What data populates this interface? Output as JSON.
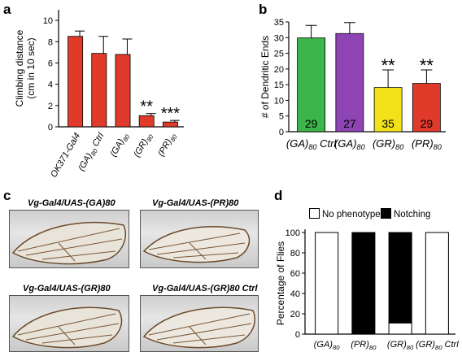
{
  "panels": {
    "a": "a",
    "b": "b",
    "c": "c",
    "d": "d"
  },
  "chart_data": [
    {
      "type": "bar",
      "ylabel_line1": "Climbing distance",
      "ylabel_line2": "(cm in 10 sec)",
      "categories": [
        "OK371-Gal4",
        "(GA)80 Ctrl",
        "(GA)80",
        "(GR)80",
        "(PR)80"
      ],
      "values": [
        8.5,
        6.9,
        6.8,
        1.05,
        0.45
      ],
      "errors": [
        0.5,
        1.6,
        1.45,
        0.2,
        0.15
      ],
      "significance": [
        "",
        "",
        "",
        "**",
        "***"
      ],
      "yticks": [
        0,
        2,
        4,
        6,
        8,
        10
      ],
      "ylim": [
        0,
        11
      ],
      "color": "#e03a2a"
    },
    {
      "type": "bar",
      "ylabel": "# of Dendritic Ends",
      "categories": [
        "(GA)80 Ctrl",
        "(GA)80",
        "(GR)80",
        "(PR)80"
      ],
      "values": [
        29.9,
        31.3,
        14.1,
        15.4
      ],
      "errors": [
        4.0,
        3.5,
        5.6,
        4.3
      ],
      "bar_labels": [
        "29",
        "27",
        "35",
        "29"
      ],
      "significance": [
        "",
        "",
        "**",
        "**"
      ],
      "colors": [
        "#3cb54a",
        "#8e44b3",
        "#f2e21a",
        "#e03a2a"
      ],
      "yticks": [
        0,
        5,
        10,
        15,
        20,
        25,
        30,
        35
      ],
      "ylim": [
        0,
        35
      ]
    },
    {
      "type": "bar",
      "stacked": true,
      "ylabel": "Percentage of Flies",
      "categories": [
        "(GA)80",
        "(PR)80",
        "(GR)80",
        "(GR)80 Ctrl"
      ],
      "series": [
        {
          "name": "No phenotype",
          "values": [
            100,
            0,
            11,
            100
          ],
          "color": "#ffffff"
        },
        {
          "name": "Notching",
          "values": [
            0,
            100,
            89,
            0
          ],
          "color": "#000000"
        }
      ],
      "yticks": [
        0,
        20,
        40,
        60,
        80,
        100
      ],
      "ylim": [
        0,
        100
      ]
    }
  ],
  "wings": [
    "Vg-Gal4/UAS-(GA)80",
    "Vg-Gal4/UAS-(PR)80",
    "Vg-Gal4/UAS-(GR)80",
    "Vg-Gal4/UAS-(GR)80 Ctrl"
  ]
}
